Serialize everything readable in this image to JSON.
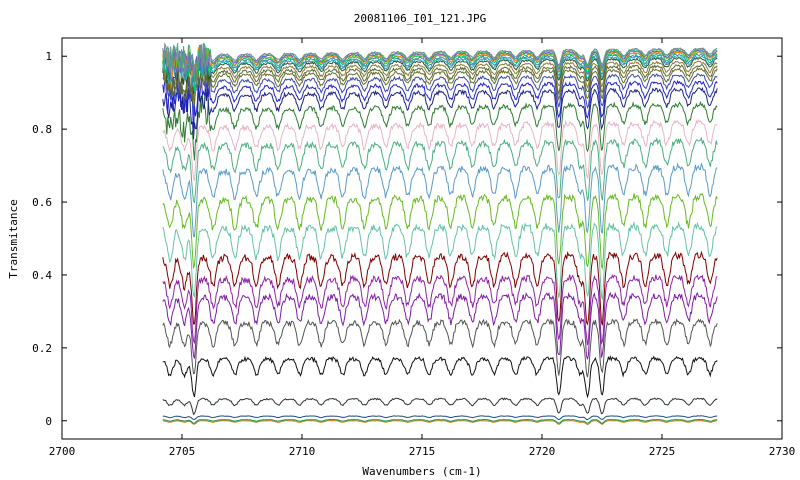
{
  "chart_data": {
    "type": "line",
    "title": "20081106_I01_121.JPG",
    "xlabel": "Wavenumbers (cm-1)",
    "ylabel": "Transmitance",
    "xlim": [
      2700,
      2730
    ],
    "ylim": [
      -0.05,
      1.05
    ],
    "x_ticks": [
      2700,
      2705,
      2710,
      2715,
      2720,
      2725,
      2730
    ],
    "x_tick_labels": [
      "2700",
      "2705",
      "2710",
      "2715",
      "2720",
      "2725",
      "2730"
    ],
    "y_ticks": [
      0,
      0.2,
      0.4,
      0.6,
      0.8,
      1
    ],
    "y_tick_labels": [
      "0",
      "0.2",
      "0.4",
      "0.6",
      "0.8",
      "1"
    ],
    "grid": false,
    "legend": "none",
    "x_range": [
      2704.2,
      2727.3
    ],
    "absorption_lines": [
      2704.5,
      2705.1,
      2705.5,
      2706.3,
      2707.2,
      2708.1,
      2709.0,
      2709.9,
      2710.8,
      2711.7,
      2712.6,
      2713.5,
      2714.4,
      2715.3,
      2716.2,
      2717.1,
      2718.0,
      2718.9,
      2719.8,
      2720.7,
      2721.6,
      2721.9,
      2722.5,
      2723.4,
      2724.3,
      2725.2,
      2726.1,
      2727.0
    ],
    "strong_lines": [
      2705.5,
      2720.7,
      2721.9,
      2722.5
    ],
    "series": [
      {
        "level": 0.0,
        "color": "#b8860b"
      },
      {
        "level": 0.003,
        "color": "#2e8b57"
      },
      {
        "level": 0.013,
        "color": "#1f4e79"
      },
      {
        "level": 0.06,
        "color": "#333333"
      },
      {
        "level": 0.17,
        "color": "#111111"
      },
      {
        "level": 0.27,
        "color": "#555555"
      },
      {
        "level": 0.34,
        "color": "#7b1fa2"
      },
      {
        "level": 0.39,
        "color": "#8e24aa"
      },
      {
        "level": 0.45,
        "color": "#7f0000"
      },
      {
        "level": 0.53,
        "color": "#66c2a5"
      },
      {
        "level": 0.61,
        "color": "#66bb22"
      },
      {
        "level": 0.69,
        "color": "#5b9bc8"
      },
      {
        "level": 0.76,
        "color": "#4caf80"
      },
      {
        "level": 0.81,
        "color": "#e8b4c8"
      },
      {
        "level": 0.86,
        "color": "#2e7d32"
      },
      {
        "level": 0.9,
        "color": "#1a237e"
      },
      {
        "level": 0.92,
        "color": "#2222cc"
      },
      {
        "level": 0.94,
        "color": "#3949ab"
      },
      {
        "level": 0.955,
        "color": "#6b6b2e"
      },
      {
        "level": 0.965,
        "color": "#556b2f"
      },
      {
        "level": 0.975,
        "color": "#8b7d3a"
      },
      {
        "level": 0.985,
        "color": "#2f4f2f"
      },
      {
        "level": 0.99,
        "color": "#20b2aa"
      },
      {
        "level": 0.995,
        "color": "#4682b4"
      },
      {
        "level": 1.0,
        "color": "#00cc66"
      },
      {
        "level": 1.003,
        "color": "#ff8c00"
      },
      {
        "level": 1.006,
        "color": "#6a5acd"
      },
      {
        "level": 1.009,
        "color": "#3cb371"
      },
      {
        "level": 1.012,
        "color": "#778899"
      }
    ]
  }
}
